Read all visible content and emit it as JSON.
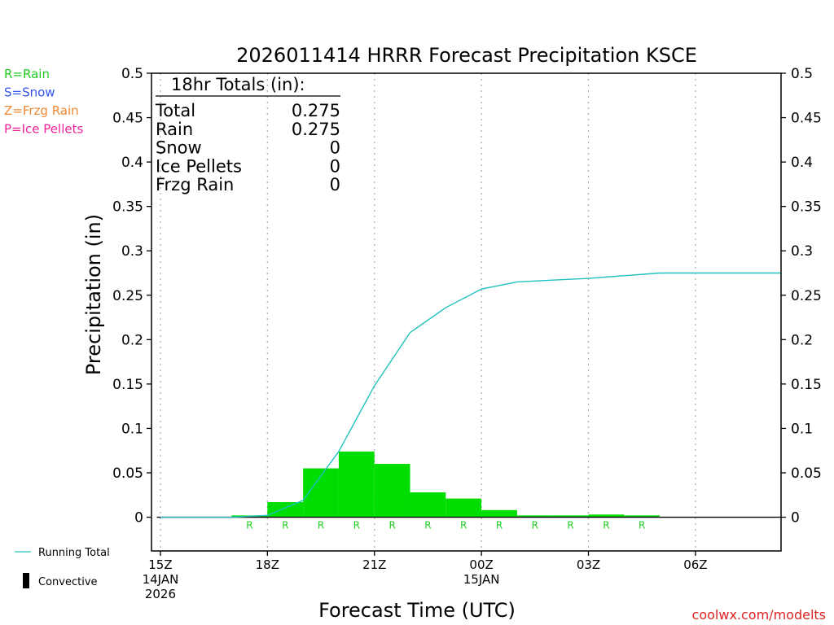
{
  "chart_data": {
    "type": "bar",
    "title": "2026011414 HRRR Forecast Precipitation KSCE",
    "xlabel": "Forecast Time (UTC)",
    "ylabel": "Precipitation (in)",
    "ylim": [
      -0.038,
      0.5
    ],
    "y_ticks": [
      "0.5",
      "0.45",
      "0.4",
      "0.35",
      "0.3",
      "0.25",
      "0.2",
      "0.15",
      "0.1",
      "0.05",
      "0"
    ],
    "y_tick_values": [
      0.5,
      0.45,
      0.4,
      0.35,
      0.3,
      0.25,
      0.2,
      0.15,
      0.1,
      0.05,
      0
    ],
    "x_range_hours": [
      14.75,
      32.4
    ],
    "x_ticks": [
      {
        "hour": 15,
        "lines": [
          "15Z",
          "14JAN",
          "2026"
        ]
      },
      {
        "hour": 18,
        "lines": [
          "18Z"
        ]
      },
      {
        "hour": 21,
        "lines": [
          "21Z"
        ]
      },
      {
        "hour": 24,
        "lines": [
          "00Z",
          "15JAN"
        ]
      },
      {
        "hour": 27,
        "lines": [
          "03Z"
        ]
      },
      {
        "hour": 30,
        "lines": [
          "06Z"
        ]
      }
    ],
    "grid_x_hours": [
      15,
      18,
      21,
      24,
      27,
      30
    ],
    "series": [
      {
        "name": "Hourly Precipitation (Rain)",
        "kind": "bar",
        "color": "#00dd00",
        "hours": [
          15,
          16,
          17,
          18,
          19,
          20,
          21,
          22,
          23,
          24,
          25,
          26,
          27,
          28,
          29,
          30,
          31,
          32
        ],
        "values": [
          0,
          0,
          0,
          0.002,
          0.017,
          0.055,
          0.074,
          0.06,
          0.028,
          0.021,
          0.008,
          0.002,
          0.002,
          0.003,
          0.002,
          0,
          0,
          0
        ],
        "type_markers": [
          "",
          "",
          "",
          "R",
          "R",
          "R",
          "R",
          "R",
          "R",
          "R",
          "R",
          "R",
          "R",
          "R",
          "R",
          "",
          "",
          ""
        ]
      },
      {
        "name": "Running Total",
        "kind": "line",
        "color": "#20c0c0",
        "hours": [
          15,
          16,
          17,
          18,
          19,
          20,
          21,
          22,
          23,
          24,
          25,
          26,
          27,
          28,
          29,
          30,
          31,
          32
        ],
        "values": [
          0,
          0,
          0,
          0.002,
          0.019,
          0.074,
          0.148,
          0.208,
          0.236,
          0.257,
          0.265,
          0.267,
          0.269,
          0.272,
          0.275,
          0.275,
          0.275,
          0.275
        ]
      }
    ],
    "totals_box": {
      "heading": "18hr Totals (in):",
      "rows": [
        {
          "label": "Total",
          "value": "0.275"
        },
        {
          "label": "Rain",
          "value": "0.275"
        },
        {
          "label": "Snow",
          "value": "0"
        },
        {
          "label": "Ice Pellets",
          "value": "0"
        },
        {
          "label": "Frzg Rain",
          "value": "0"
        }
      ]
    },
    "type_legend": [
      {
        "text": "R=Rain",
        "color": "#22cc22"
      },
      {
        "text": "S=Snow",
        "color": "#3355ee"
      },
      {
        "text": "Z=Frzg Rain",
        "color": "#ee8833"
      },
      {
        "text": "P=Ice Pellets",
        "color": "#ee2299"
      }
    ],
    "line_legend": {
      "running_total": "Running Total",
      "convective": "Convective"
    },
    "credit": "coolwx.com/modelts"
  }
}
